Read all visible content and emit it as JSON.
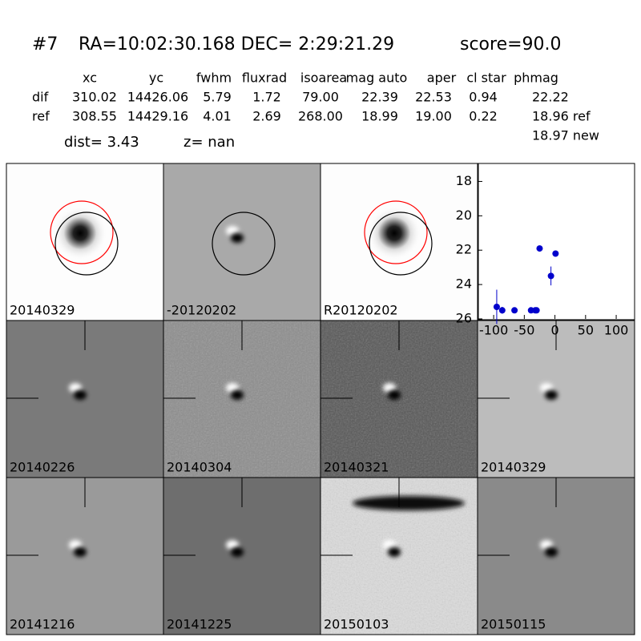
{
  "header": {
    "id": "#7",
    "coords": "RA=10:02:30.168 DEC= 2:29:21.29",
    "score": "score=90.0"
  },
  "table": {
    "columns": [
      "xc",
      "yc",
      "fwhm",
      "fluxrad",
      "isoarea",
      "mag auto",
      "aper",
      "cl star",
      "phmag"
    ],
    "rows": [
      [
        "dif",
        "310.02",
        "14426.06",
        "5.79",
        "1.72",
        "79.00",
        "22.39",
        "22.53",
        "0.94",
        "22.22"
      ],
      [
        "ref",
        "308.55",
        "14429.16",
        "4.01",
        "2.69",
        "268.00",
        "18.99",
        "19.00",
        "0.22",
        "18.96 ref"
      ]
    ],
    "extra": "18.97 new"
  },
  "dist": "dist=  3.43",
  "z": "z=   nan",
  "panels": [
    {
      "label": "20140329",
      "color": "#000000"
    },
    {
      "label": "-20120202",
      "color": "#000000"
    },
    {
      "label": "R20120202",
      "color": "#000000"
    },
    {
      "label": "20140226",
      "color": "#000000"
    },
    {
      "label": "20140304",
      "color": "#000000"
    },
    {
      "label": "20140321",
      "color": "#000000"
    },
    {
      "label": "20140329",
      "color": "#ff0000"
    },
    {
      "label": "20141216",
      "color": "#000000"
    },
    {
      "label": "20141225",
      "color": "#000000"
    },
    {
      "label": "20150103",
      "color": "#000000"
    },
    {
      "label": "20150115",
      "color": "#000000"
    }
  ],
  "chart_data": {
    "type": "scatter",
    "color": "#0000cc",
    "x": [
      -95,
      -86,
      -66,
      -39,
      -32,
      -30,
      -25,
      -6.5,
      1
    ],
    "values": [
      25.3,
      25.5,
      25.5,
      25.5,
      25.5,
      25.5,
      21.9,
      23.5,
      22.2
    ],
    "errors": [
      1.0,
      0.2,
      0.1,
      0.1,
      0.1,
      0.1,
      0.15,
      0.55,
      0.1
    ],
    "xlim": [
      -125,
      130
    ],
    "xticks": [
      -100,
      -50,
      0,
      50,
      100
    ],
    "ylim": [
      17,
      26
    ],
    "yticks": [
      18,
      20,
      22,
      24,
      26
    ],
    "y_inverted": true
  }
}
